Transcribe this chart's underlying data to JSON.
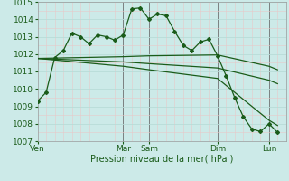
{
  "xlabel": "Pression niveau de la mer( hPa )",
  "bg_color": "#cceae8",
  "line_color": "#1a5c1a",
  "ylim": [
    1007,
    1015
  ],
  "yticks": [
    1007,
    1008,
    1009,
    1010,
    1011,
    1012,
    1013,
    1014,
    1015
  ],
  "day_labels": [
    "Ven",
    "Mar",
    "Sam",
    "Dim",
    "Lun"
  ],
  "day_positions": [
    0,
    10,
    13,
    21,
    27
  ],
  "xlim": [
    0,
    29
  ],
  "series1": {
    "x": [
      0,
      1,
      2,
      3,
      4,
      5,
      6,
      7,
      8,
      9,
      10,
      11,
      12,
      13,
      14,
      15,
      16,
      17,
      18,
      19,
      20,
      21,
      22,
      23,
      24,
      25,
      26,
      27,
      28
    ],
    "y": [
      1009.3,
      1009.8,
      1011.8,
      1012.2,
      1013.2,
      1013.0,
      1012.6,
      1013.1,
      1013.0,
      1012.8,
      1013.1,
      1014.6,
      1014.65,
      1014.0,
      1014.3,
      1014.2,
      1013.3,
      1012.5,
      1012.2,
      1012.7,
      1012.85,
      1011.9,
      1010.75,
      1009.5,
      1008.4,
      1007.7,
      1007.55,
      1008.0,
      1007.5
    ]
  },
  "series2": {
    "x": [
      0,
      10,
      13,
      21,
      27,
      28
    ],
    "y": [
      1011.75,
      1011.85,
      1011.9,
      1011.95,
      1011.3,
      1011.1
    ]
  },
  "series3": {
    "x": [
      0,
      10,
      13,
      21,
      27,
      28
    ],
    "y": [
      1011.75,
      1011.55,
      1011.45,
      1011.2,
      1010.5,
      1010.3
    ]
  },
  "series4": {
    "x": [
      0,
      10,
      13,
      21,
      27,
      28
    ],
    "y": [
      1011.75,
      1011.3,
      1011.1,
      1010.6,
      1008.2,
      1007.9
    ]
  },
  "minor_grid_color": "#e8c8c8",
  "major_grid_color": "#b8dcd8",
  "vline_color": "#666666"
}
